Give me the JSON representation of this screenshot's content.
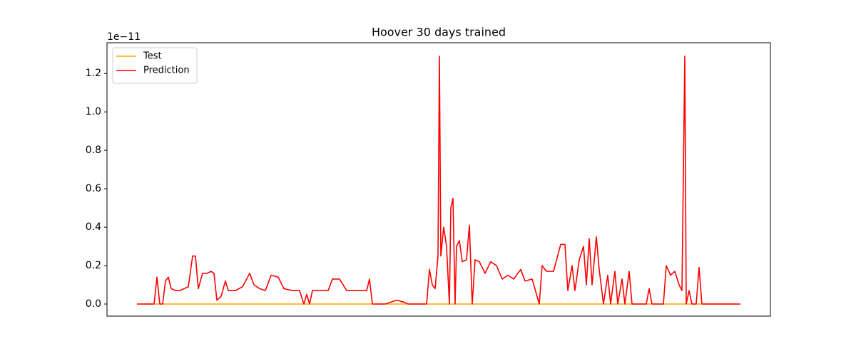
{
  "chart_data": {
    "type": "line",
    "title": "Hoover 30 days trained",
    "y_offset_label": "1e−11",
    "xlim": [
      -42,
      888
    ],
    "ylim": [
      -0.063,
      1.36
    ],
    "yticks": [
      {
        "value": 0,
        "label": "0.0"
      },
      0.2,
      0.4,
      0.6,
      0.8,
      {
        "value": 1,
        "label": "1.0"
      },
      1.2
    ],
    "legend": "upper left",
    "series": [
      {
        "name": "Test",
        "color": "#ffa500",
        "x": [
          0,
          846
        ],
        "values": [
          0,
          0
        ]
      },
      {
        "name": "Prediction",
        "color": "#ff0000",
        "x": [
          0,
          6,
          12,
          18,
          24,
          28,
          32,
          36,
          40,
          44,
          48,
          54,
          60,
          66,
          72,
          78,
          82,
          86,
          92,
          98,
          104,
          108,
          112,
          118,
          124,
          128,
          138,
          148,
          158,
          164,
          172,
          180,
          188,
          198,
          206,
          218,
          228,
          234,
          238,
          242,
          246,
          258,
          268,
          274,
          284,
          294,
          308,
          322,
          326,
          330,
          348,
          364,
          374,
          380,
          406,
          410,
          414,
          418,
          422,
          424,
          426,
          430,
          434,
          438,
          440,
          443,
          446,
          448,
          452,
          456,
          462,
          466,
          470,
          474,
          480,
          488,
          496,
          504,
          512,
          520,
          528,
          538,
          544,
          554,
          564,
          568,
          574,
          584,
          594,
          600,
          604,
          610,
          614,
          620,
          626,
          630,
          634,
          638,
          644,
          648,
          654,
          660,
          664,
          670,
          674,
          680,
          684,
          690,
          694,
          702,
          714,
          718,
          722,
          738,
          742,
          748,
          754,
          760,
          764,
          768,
          770,
          774,
          778,
          784,
          788,
          792,
          808,
          828,
          846
        ],
        "values": [
          0,
          0,
          0,
          0,
          0,
          0.14,
          0,
          0,
          0.12,
          0.14,
          0.08,
          0.07,
          0.07,
          0.08,
          0.09,
          0.25,
          0.25,
          0.08,
          0.16,
          0.16,
          0.17,
          0.16,
          0.02,
          0.04,
          0.12,
          0.07,
          0.07,
          0.09,
          0.16,
          0.1,
          0.08,
          0.07,
          0.15,
          0.14,
          0.08,
          0.07,
          0.07,
          0,
          0.05,
          0,
          0.07,
          0.07,
          0.07,
          0.13,
          0.13,
          0.07,
          0.07,
          0.07,
          0.13,
          0,
          0,
          0.02,
          0.01,
          0,
          0,
          0.18,
          0.1,
          0.08,
          0.25,
          1.29,
          0.25,
          0.4,
          0.3,
          0,
          0.5,
          0.55,
          0,
          0.3,
          0.33,
          0.22,
          0.23,
          0.41,
          0,
          0.23,
          0.22,
          0.16,
          0.22,
          0.2,
          0.13,
          0.15,
          0.13,
          0.18,
          0.12,
          0.13,
          0,
          0.2,
          0.17,
          0.17,
          0.31,
          0.31,
          0.07,
          0.2,
          0.07,
          0.23,
          0.3,
          0.1,
          0.34,
          0.1,
          0.35,
          0.18,
          0,
          0.15,
          0,
          0.17,
          0,
          0.13,
          0,
          0.17,
          0,
          0,
          0,
          0.08,
          0,
          0,
          0.2,
          0.15,
          0.17,
          0.1,
          0.07,
          1.29,
          0,
          0.07,
          0,
          0,
          0.19,
          0,
          0,
          0,
          0
        ]
      }
    ]
  }
}
